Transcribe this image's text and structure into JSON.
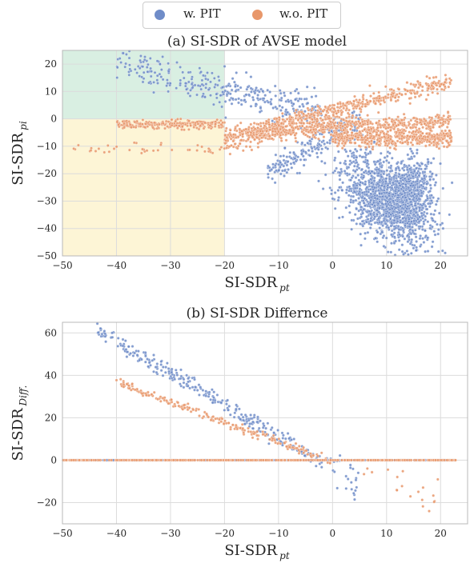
{
  "legend": {
    "items": [
      {
        "label": "w. PIT",
        "color": "#6f8cc8"
      },
      {
        "label": "w.o. PIT",
        "color": "#e8976a"
      }
    ]
  },
  "chart_data": [
    {
      "type": "scatter",
      "title": "(a) SI-SDR of AVSE model",
      "xlabel": "SI-SDR",
      "xlabel_sub": "pt",
      "ylabel": "SI-SDR",
      "ylabel_sub": "pi",
      "xlim": [
        -50,
        25
      ],
      "ylim": [
        -50,
        25
      ],
      "xticks": [
        -50,
        -40,
        -30,
        -20,
        -10,
        0,
        10,
        20
      ],
      "yticks": [
        -50,
        -40,
        -30,
        -20,
        -10,
        0,
        10,
        20
      ],
      "grid": true,
      "shaded_regions": [
        {
          "x": [
            -50,
            -20
          ],
          "y": [
            0,
            25
          ],
          "color": "#d9efe2"
        },
        {
          "x": [
            -50,
            -20
          ],
          "y": [
            -50,
            0
          ],
          "color": "#fdf5d6"
        }
      ],
      "series": [
        {
          "name": "w. PIT",
          "color": "#6f8cc8",
          "clusters": [
            {
              "n": 150,
              "xr": [
                -40,
                -20
              ],
              "rel": "y=-0.45x+2",
              "sd": 3
            },
            {
              "n": 180,
              "xr": [
                -20,
                -2
              ],
              "rel": "y=-0.5x+1",
              "sd": 3
            },
            {
              "n": 200,
              "xr": [
                -12,
                5
              ],
              "rel": "y=1.2x-6",
              "sd": 2.5
            },
            {
              "n": 1400,
              "center": [
                10,
                -30
              ],
              "spread": [
                4,
                8
              ],
              "corr": -0.5
            },
            {
              "n": 400,
              "center": [
                15,
                -25
              ],
              "spread": [
                2,
                5
              ],
              "corr": 0
            }
          ]
        },
        {
          "name": "w.o. PIT",
          "color": "#e8976a",
          "clusters": [
            {
              "n": 220,
              "xr": [
                -40,
                -20
              ],
              "y": -2,
              "sd": 0.8
            },
            {
              "n": 40,
              "xr": [
                -48,
                -20
              ],
              "y": -11,
              "sd": 1
            },
            {
              "n": 500,
              "xr": [
                -20,
                22
              ],
              "rel": "y=0.5x+3",
              "sd": 1.5
            },
            {
              "n": 500,
              "xr": [
                -15,
                22
              ],
              "rel": "y=0.1x-3",
              "sd": 1.5
            },
            {
              "n": 500,
              "xr": [
                0,
                22
              ],
              "y": -7,
              "sd": 1.5
            },
            {
              "n": 200,
              "xr": [
                -20,
                0
              ],
              "rel": "y=0.3x-2",
              "sd": 2
            }
          ]
        }
      ]
    },
    {
      "type": "scatter",
      "title": "(b) SI-SDR Differnce",
      "xlabel": "SI-SDR",
      "xlabel_sub": "pt",
      "ylabel": "SI-SDR",
      "ylabel_sub": "Diff.",
      "xlim": [
        -50,
        25
      ],
      "ylim": [
        -30,
        65
      ],
      "xticks": [
        -50,
        -40,
        -30,
        -20,
        -10,
        0,
        10,
        20
      ],
      "yticks": [
        -20,
        0,
        20,
        40,
        60
      ],
      "grid": true,
      "series": [
        {
          "name": "w. PIT",
          "color": "#6f8cc8",
          "clusters": [
            {
              "n": 300,
              "xr": [
                -44,
                -2
              ],
              "rel": "y=-1.5x-4",
              "sd": 2
            },
            {
              "n": 25,
              "xr": [
                -2,
                5
              ],
              "rel": "y=-3x",
              "sd": 4
            },
            {
              "n": 400,
              "xr": [
                -48,
                23
              ],
              "y": 0,
              "sd": 0
            }
          ]
        },
        {
          "name": "w.o. PIT",
          "color": "#e8976a",
          "clusters": [
            {
              "n": 220,
              "xr": [
                -40,
                0
              ],
              "rel": "y=-0.95x-1",
              "sd": 1
            },
            {
              "n": 20,
              "xr": [
                5,
                20
              ],
              "rel": "y=-1x",
              "sd": 4
            },
            {
              "n": 500,
              "xr": [
                -50,
                23
              ],
              "y": 0,
              "sd": 0
            }
          ]
        }
      ]
    }
  ]
}
